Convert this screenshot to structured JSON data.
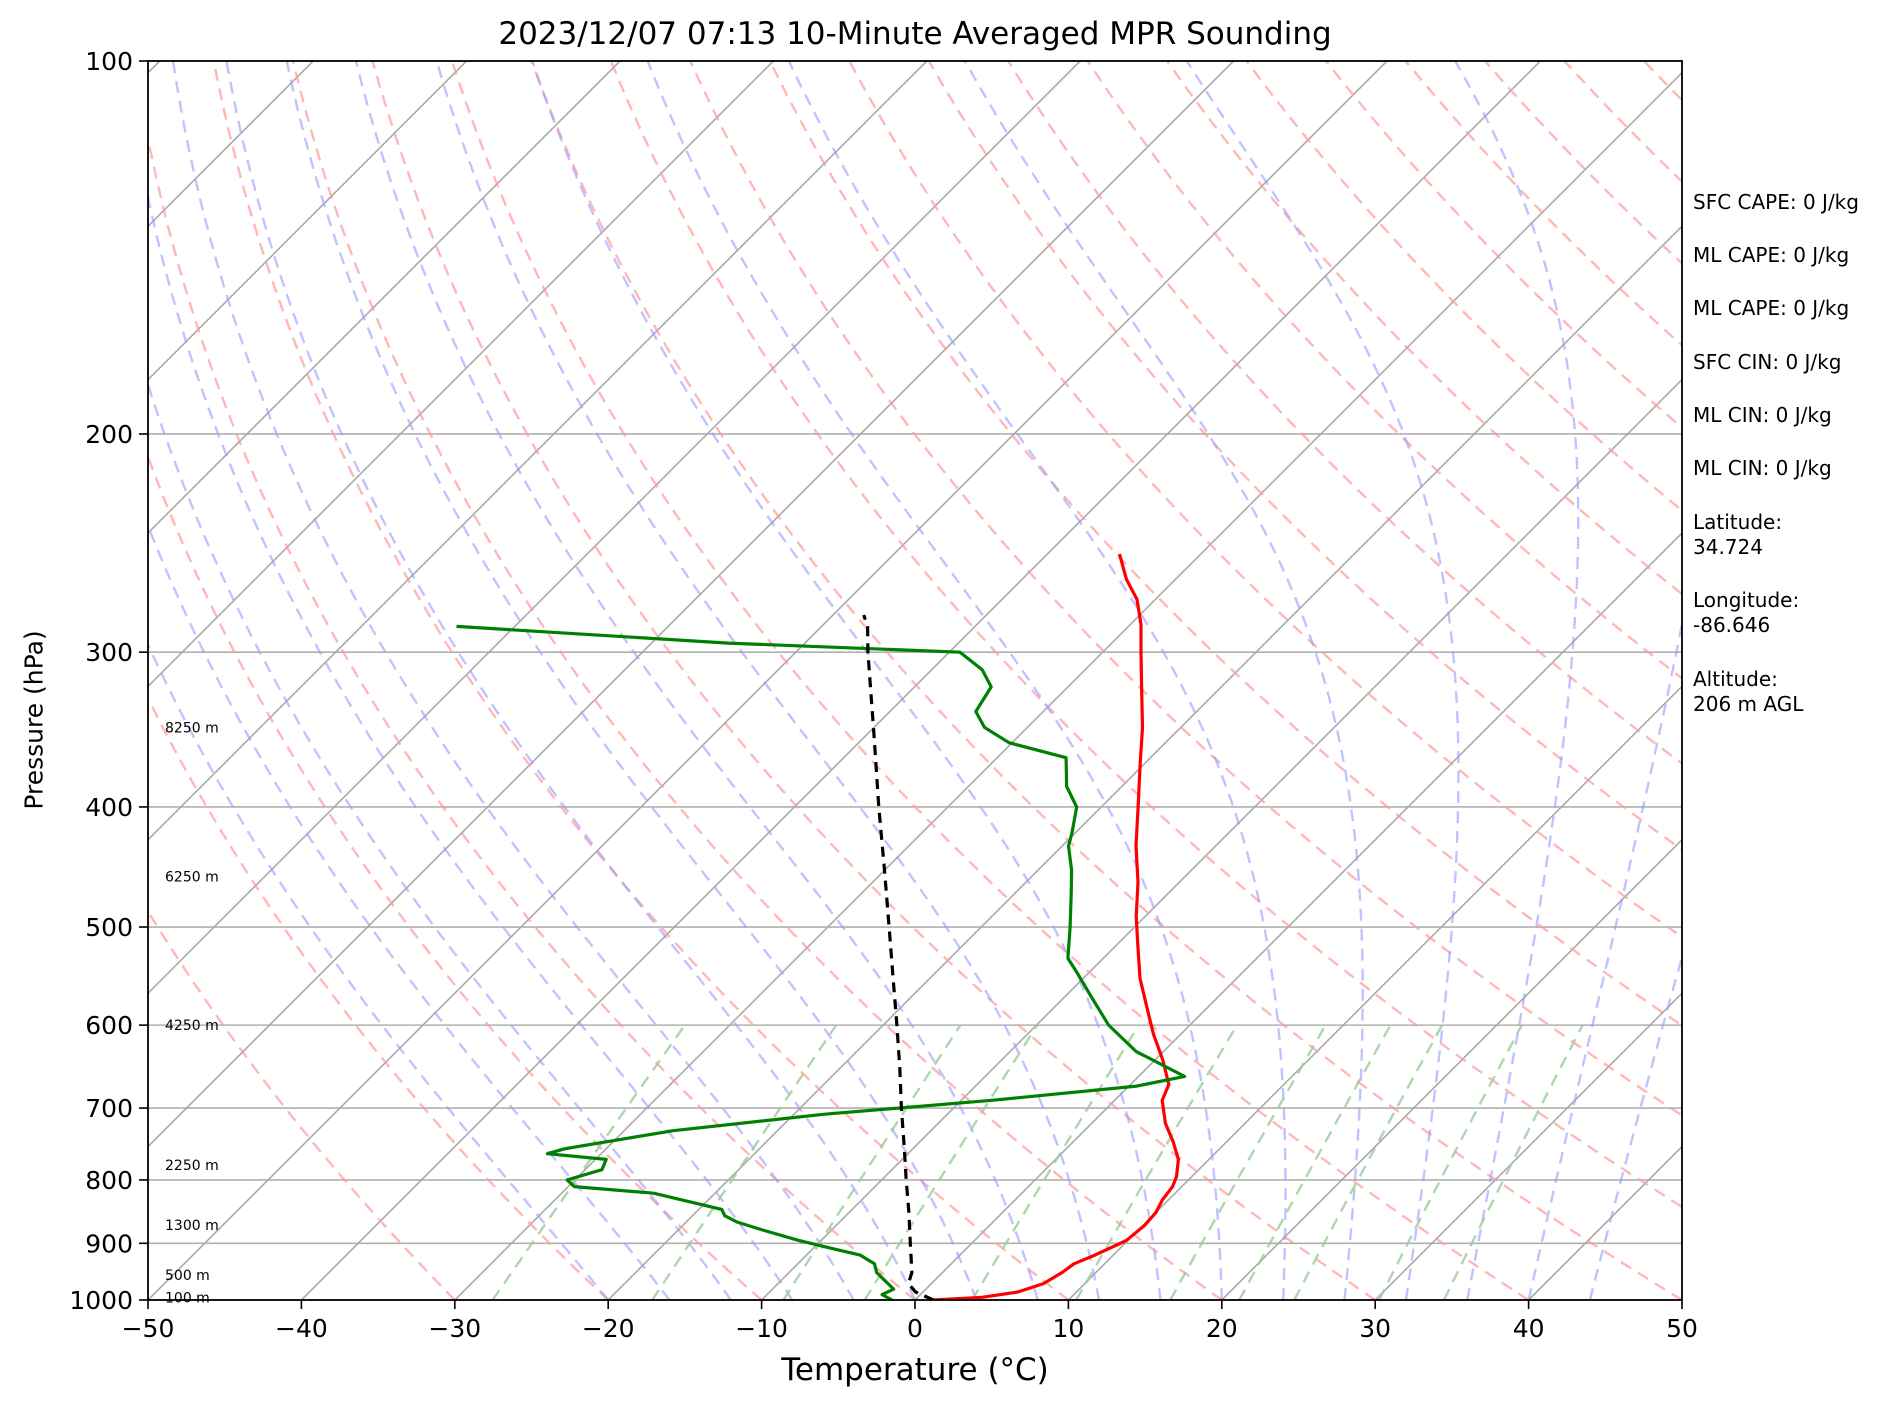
{
  "chart_data": {
    "type": "line",
    "title": "2023/12/07 07:13 10-Minute Averaged MPR Sounding",
    "xlabel": "Temperature (°C)",
    "ylabel": "Pressure (hPa)",
    "xlim": [
      -50,
      50
    ],
    "ylim": [
      1000,
      100
    ],
    "y_scale": "log",
    "x_ticks": [
      "−50",
      "−40",
      "−30",
      "−20",
      "−10",
      "0",
      "10",
      "20",
      "30",
      "40",
      "50"
    ],
    "y_ticks": [
      "100",
      "200",
      "300",
      "400",
      "500",
      "600",
      "700",
      "800",
      "900",
      "1000"
    ],
    "height_labels": [
      {
        "p": 345,
        "text": "8250 m"
      },
      {
        "p": 455,
        "text": "6250 m"
      },
      {
        "p": 600,
        "text": "4250 m"
      },
      {
        "p": 778,
        "text": "2250 m"
      },
      {
        "p": 870,
        "text": "1300 m"
      },
      {
        "p": 955,
        "text": "500 m"
      },
      {
        "p": 995,
        "text": "100 m"
      }
    ],
    "colors": {
      "temperature": "#ff0000",
      "dewpoint": "#008000",
      "parcel": "#000000",
      "isotherms": "#a9a9a9",
      "dry_adiabats": "#ff9999",
      "moist_adiabats": "#9999ff",
      "mixing_ratio": "#99cc99",
      "height_labels": "#000000"
    },
    "series": [
      {
        "values": [
          {
            "p": 1000,
            "t": 1.2
          },
          {
            "p": 995,
            "t": 4.2
          },
          {
            "p": 985,
            "t": 6.2
          },
          {
            "p": 970,
            "t": 7.3
          },
          {
            "p": 950,
            "t": 7.8
          },
          {
            "p": 935,
            "t": 8.0
          },
          {
            "p": 920,
            "t": 8.8
          },
          {
            "p": 902,
            "t": 9.6
          },
          {
            "p": 895,
            "t": 9.9
          },
          {
            "p": 870,
            "t": 10.1
          },
          {
            "p": 850,
            "t": 10.0
          },
          {
            "p": 830,
            "t": 9.6
          },
          {
            "p": 810,
            "t": 9.4
          },
          {
            "p": 795,
            "t": 9.0
          },
          {
            "p": 770,
            "t": 8.0
          },
          {
            "p": 745,
            "t": 6.5
          },
          {
            "p": 720,
            "t": 4.8
          },
          {
            "p": 690,
            "t": 3.1
          },
          {
            "p": 670,
            "t": 2.5
          },
          {
            "p": 640,
            "t": 0.5
          },
          {
            "p": 610,
            "t": -1.8
          },
          {
            "p": 580,
            "t": -4.0
          },
          {
            "p": 550,
            "t": -6.3
          },
          {
            "p": 520,
            "t": -8.4
          },
          {
            "p": 490,
            "t": -10.6
          },
          {
            "p": 460,
            "t": -12.7
          },
          {
            "p": 430,
            "t": -15.2
          },
          {
            "p": 400,
            "t": -17.6
          },
          {
            "p": 370,
            "t": -20.2
          },
          {
            "p": 345,
            "t": -22.5
          },
          {
            "p": 320,
            "t": -25.2
          },
          {
            "p": 300,
            "t": -27.5
          },
          {
            "p": 285,
            "t": -29.3
          },
          {
            "p": 272,
            "t": -31.2
          },
          {
            "p": 262,
            "t": -33.2
          },
          {
            "p": 250,
            "t": -35.3
          }
        ]
      },
      {
        "values": [
          {
            "p": 1000,
            "t": -1.5
          },
          {
            "p": 990,
            "t": -2.5
          },
          {
            "p": 980,
            "t": -2.1
          },
          {
            "p": 965,
            "t": -3.2
          },
          {
            "p": 950,
            "t": -4.3
          },
          {
            "p": 935,
            "t": -5.0
          },
          {
            "p": 920,
            "t": -6.5
          },
          {
            "p": 910,
            "t": -8.5
          },
          {
            "p": 895,
            "t": -11.5
          },
          {
            "p": 878,
            "t": -14.5
          },
          {
            "p": 865,
            "t": -16.7
          },
          {
            "p": 855,
            "t": -17.9
          },
          {
            "p": 845,
            "t": -18.5
          },
          {
            "p": 820,
            "t": -24.0
          },
          {
            "p": 810,
            "t": -29.6
          },
          {
            "p": 800,
            "t": -30.5
          },
          {
            "p": 785,
            "t": -28.9
          },
          {
            "p": 770,
            "t": -29.3
          },
          {
            "p": 762,
            "t": -33.5
          },
          {
            "p": 755,
            "t": -32.7
          },
          {
            "p": 748,
            "t": -31.1
          },
          {
            "p": 730,
            "t": -26.8
          },
          {
            "p": 708,
            "t": -18.0
          },
          {
            "p": 690,
            "t": -8.0
          },
          {
            "p": 672,
            "t": 0.5
          },
          {
            "p": 660,
            "t": 3.0
          },
          {
            "p": 630,
            "t": -1.8
          },
          {
            "p": 600,
            "t": -5.3
          },
          {
            "p": 570,
            "t": -8.2
          },
          {
            "p": 545,
            "t": -10.7
          },
          {
            "p": 530,
            "t": -12.3
          },
          {
            "p": 500,
            "t": -14.2
          },
          {
            "p": 470,
            "t": -16.3
          },
          {
            "p": 450,
            "t": -17.8
          },
          {
            "p": 430,
            "t": -19.6
          },
          {
            "p": 420,
            "t": -20.2
          },
          {
            "p": 400,
            "t": -21.6
          },
          {
            "p": 385,
            "t": -23.6
          },
          {
            "p": 365,
            "t": -25.5
          },
          {
            "p": 355,
            "t": -30.2
          },
          {
            "p": 345,
            "t": -32.8
          },
          {
            "p": 335,
            "t": -34.4
          },
          {
            "p": 320,
            "t": -35.0
          },
          {
            "p": 310,
            "t": -36.7
          },
          {
            "p": 300,
            "t": -39.3
          },
          {
            "p": 295,
            "t": -55.0
          },
          {
            "p": 286,
            "t": -73.8
          }
        ]
      },
      {
        "values": [
          {
            "p": 1000,
            "t": 1.2
          },
          {
            "p": 985,
            "t": -0.5
          },
          {
            "p": 970,
            "t": -1.5
          },
          {
            "p": 950,
            "t": -2.0
          },
          {
            "p": 900,
            "t": -4.0
          },
          {
            "p": 850,
            "t": -6.1
          },
          {
            "p": 800,
            "t": -8.4
          },
          {
            "p": 750,
            "t": -10.8
          },
          {
            "p": 700,
            "t": -13.4
          },
          {
            "p": 650,
            "t": -16.1
          },
          {
            "p": 600,
            "t": -19.1
          },
          {
            "p": 550,
            "t": -22.4
          },
          {
            "p": 500,
            "t": -26.0
          },
          {
            "p": 450,
            "t": -30.0
          },
          {
            "p": 400,
            "t": -34.5
          },
          {
            "p": 350,
            "t": -39.5
          },
          {
            "p": 300,
            "t": -45.3
          },
          {
            "p": 286,
            "t": -47.0
          },
          {
            "p": 280,
            "t": -48.0
          }
        ]
      }
    ],
    "legend": "none",
    "grid": true
  },
  "indices": [
    {
      "label": "SFC CAPE: 0 J/kg"
    },
    {
      "label": "ML CAPE: 0 J/kg"
    },
    {
      "label": "ML CAPE: 0 J/kg"
    },
    {
      "label": "SFC CIN: 0 J/kg"
    },
    {
      "label": "ML CIN: 0 J/kg"
    },
    {
      "label": "ML CIN: 0 J/kg"
    }
  ],
  "location": {
    "latitude": "Latitude:\n34.724",
    "longitude": "Longitude:\n-86.646",
    "altitude": "Altitude:\n206 m AGL"
  }
}
